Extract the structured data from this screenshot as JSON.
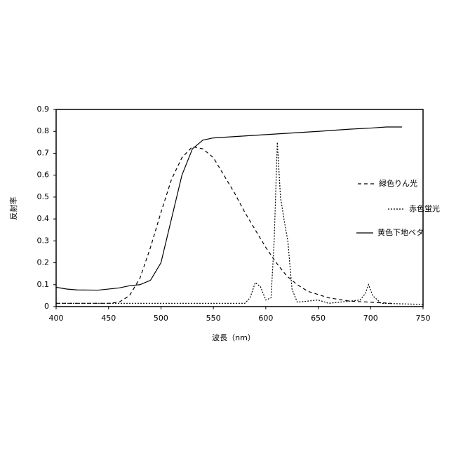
{
  "chart_data": {
    "type": "line",
    "xlabel": "波長（nm）",
    "ylabel": "反射率",
    "xlim": [
      400,
      750
    ],
    "xticks": [
      400,
      450,
      500,
      550,
      600,
      650,
      700,
      750
    ],
    "ylim": [
      0,
      0.9
    ],
    "yticks": [
      0,
      0.1,
      0.2,
      0.3,
      0.4,
      0.5,
      0.6,
      0.7,
      0.8,
      0.9
    ],
    "grid": false,
    "legend": "right",
    "series": [
      {
        "name": "緑色りん光",
        "color": "#000000",
        "dash": "dashed",
        "x": [
          400,
          450,
          460,
          470,
          480,
          490,
          500,
          510,
          520,
          530,
          540,
          550,
          560,
          570,
          580,
          590,
          600,
          610,
          620,
          630,
          640,
          660,
          680,
          700,
          720
        ],
        "values": [
          0.015,
          0.015,
          0.02,
          0.05,
          0.13,
          0.27,
          0.43,
          0.58,
          0.68,
          0.73,
          0.72,
          0.68,
          0.6,
          0.52,
          0.43,
          0.35,
          0.27,
          0.2,
          0.14,
          0.1,
          0.07,
          0.04,
          0.025,
          0.02,
          0.015
        ]
      },
      {
        "name": "赤色蛍光",
        "color": "#000000",
        "dash": "dotted",
        "x": [
          400,
          500,
          580,
          585,
          590,
          595,
          600,
          605,
          608,
          611,
          614,
          618,
          621,
          625,
          630,
          650,
          660,
          690,
          695,
          698,
          702,
          710,
          750
        ],
        "values": [
          0.015,
          0.015,
          0.015,
          0.04,
          0.11,
          0.09,
          0.03,
          0.04,
          0.3,
          0.75,
          0.5,
          0.38,
          0.3,
          0.08,
          0.02,
          0.03,
          0.015,
          0.03,
          0.06,
          0.1,
          0.05,
          0.015,
          0.01
        ]
      },
      {
        "name": "黄色下地ベタ",
        "color": "#000000",
        "dash": "solid",
        "x": [
          400,
          410,
          420,
          440,
          460,
          470,
          480,
          490,
          500,
          510,
          520,
          530,
          540,
          550,
          600,
          650,
          680,
          700,
          715,
          730
        ],
        "values": [
          0.088,
          0.08,
          0.076,
          0.075,
          0.085,
          0.095,
          0.1,
          0.12,
          0.2,
          0.4,
          0.6,
          0.72,
          0.76,
          0.77,
          0.785,
          0.8,
          0.81,
          0.815,
          0.82,
          0.82
        ]
      }
    ]
  }
}
